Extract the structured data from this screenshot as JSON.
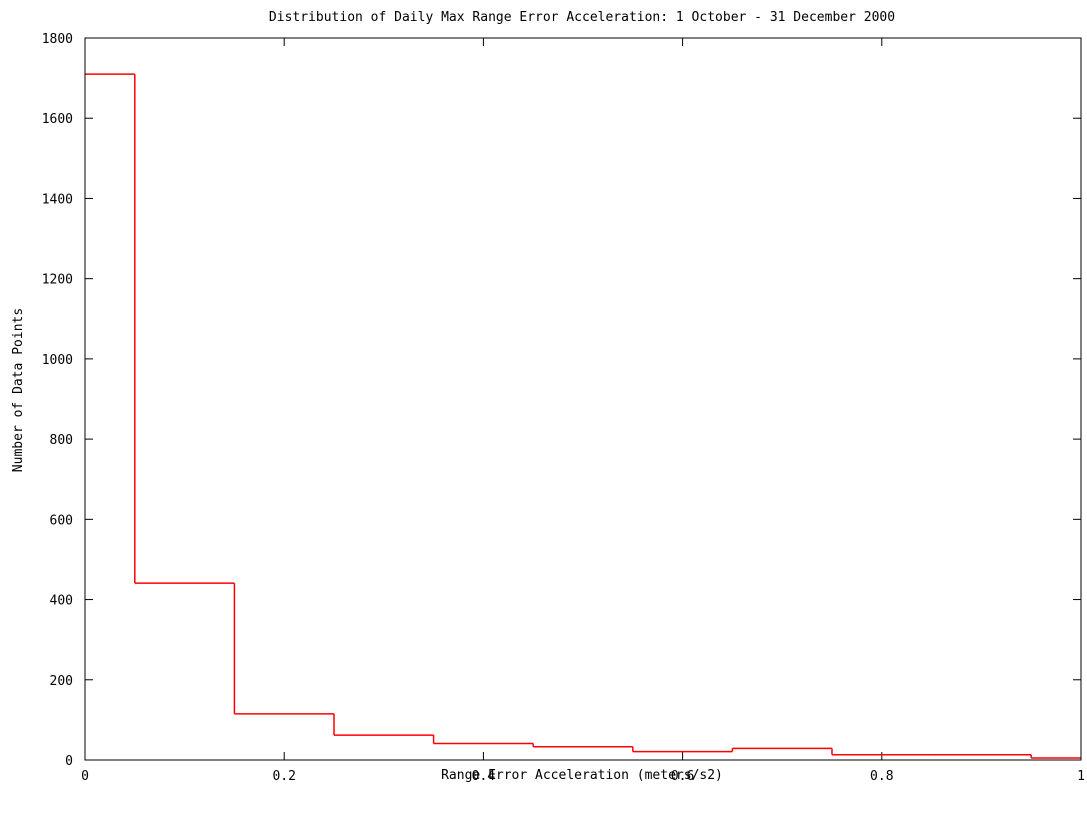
{
  "chart_data": {
    "type": "step",
    "title": "Distribution of Daily Max Range Error Acceleration: 1 October - 31 December 2000",
    "xlabel": "Range Error Acceleration (meters/s2)",
    "ylabel": "Number of Data Points",
    "xlim": [
      0,
      1
    ],
    "ylim": [
      0,
      1800
    ],
    "xticks": [
      0,
      0.2,
      0.4,
      0.6,
      0.8,
      1
    ],
    "xtick_labels": [
      "0",
      "0.2",
      "0.4",
      "0.6",
      "0.8",
      "1"
    ],
    "yticks": [
      0,
      200,
      400,
      600,
      800,
      1000,
      1200,
      1400,
      1600,
      1800
    ],
    "ytick_labels": [
      "0",
      "200",
      "400",
      "600",
      "800",
      "1000",
      "1200",
      "1400",
      "1600",
      "1800"
    ],
    "line_color": "#ff0000",
    "grid": false,
    "series": [
      {
        "bin_edges": [
          0,
          0.05,
          0.15,
          0.25,
          0.35,
          0.45,
          0.55,
          0.65,
          0.75,
          0.85,
          0.95,
          1.0
        ],
        "values": [
          1710,
          441,
          115,
          62,
          41,
          33,
          21,
          29,
          13,
          13,
          5
        ]
      }
    ]
  }
}
